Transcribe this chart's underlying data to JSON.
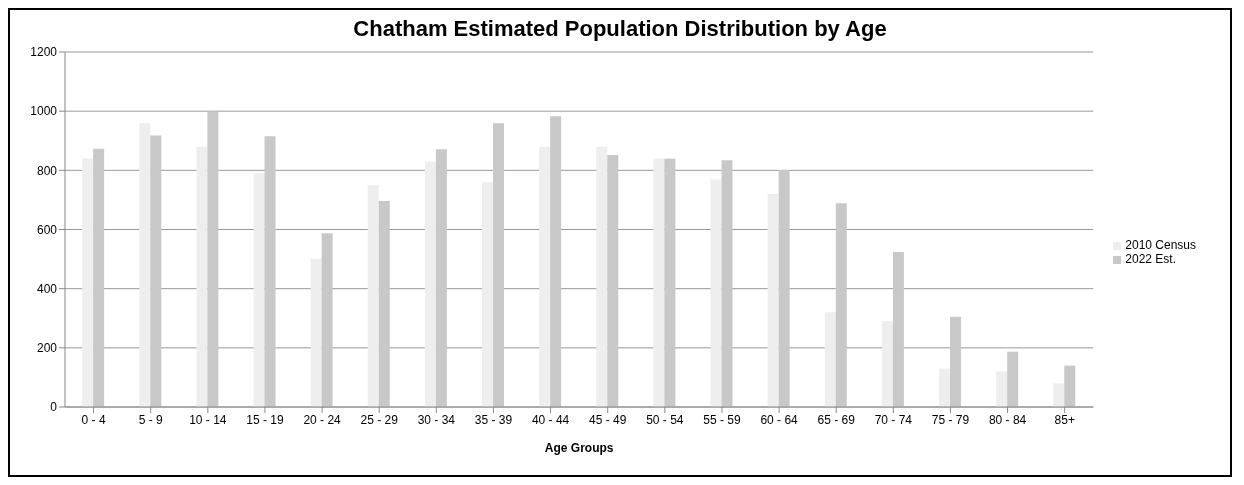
{
  "chart_data": {
    "type": "bar",
    "title": "Chatham Estimated Population Distribution by Age",
    "xlabel": "Age Groups",
    "categories": [
      "0 - 4",
      "5 - 9",
      "10 - 14",
      "15 - 19",
      "20 - 24",
      "25 - 29",
      "30 - 34",
      "35 - 39",
      "40 - 44",
      "45 - 49",
      "50 - 54",
      "55 - 59",
      "60 - 64",
      "65 - 69",
      "70 - 74",
      "75 - 79",
      "80 - 84",
      "85+"
    ],
    "series": [
      {
        "name": "2010 Census",
        "color": "#eeeeee",
        "values": [
          840,
          960,
          880,
          790,
          500,
          750,
          830,
          760,
          880,
          880,
          840,
          770,
          720,
          320,
          290,
          130,
          120,
          80
        ]
      },
      {
        "name": "2022 Est.",
        "color": "#c8c8c8",
        "values": [
          873,
          918,
          998,
          915,
          587,
          696,
          871,
          959,
          983,
          852,
          839,
          834,
          801,
          689,
          524,
          305,
          187,
          140
        ]
      }
    ],
    "ylim": [
      0,
      1200
    ],
    "yticks": [
      0,
      200,
      400,
      600,
      800,
      1000,
      1200
    ],
    "grid": "y",
    "legend": "right"
  }
}
